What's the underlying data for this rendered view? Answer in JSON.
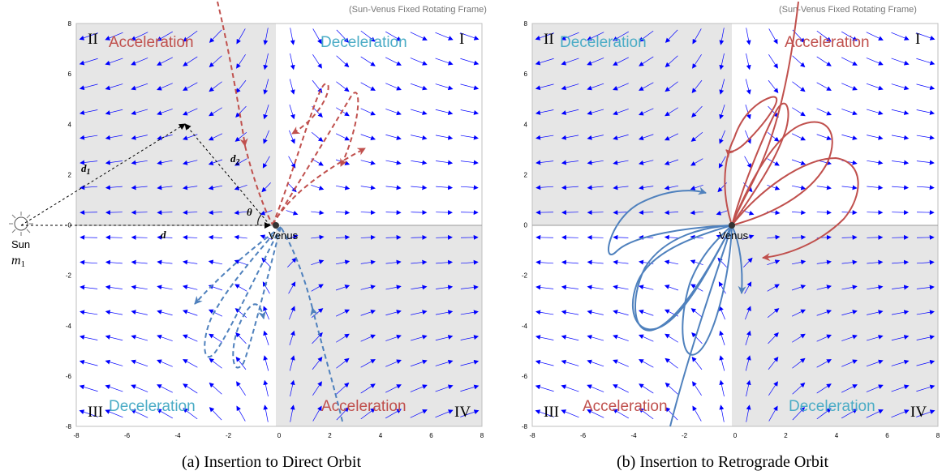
{
  "panels": [
    {
      "frame_title": "(Sun-Venus Fixed Rotating Frame)",
      "quadrants": {
        "I": "I",
        "II": "II",
        "III": "III",
        "IV": "IV"
      },
      "labels": {
        "q2": "Acceleration",
        "q1": "Deceleration",
        "q3": "Deceleration",
        "q4": "Acceleration"
      },
      "venus": "Venus",
      "caption": "(a) Insertion to Direct Orbit"
    },
    {
      "frame_title": "(Sun-Venus Fixed Rotating Frame)",
      "quadrants": {
        "I": "I",
        "II": "II",
        "III": "III",
        "IV": "IV"
      },
      "labels": {
        "q2": "Deceleration",
        "q1": "Acceleration",
        "q3": "Acceleration",
        "q4": "Deceleration"
      },
      "venus": "Venus",
      "caption": "(b) Insertion to Retrograde Orbit"
    }
  ],
  "sun": {
    "label": "Sun",
    "mass": "m",
    "mass_sub": "1"
  },
  "geometry_labels": {
    "d": "d",
    "d1": "d",
    "d1_sub": "1",
    "d2": "d",
    "d2_sub": "2",
    "theta": "θ"
  },
  "axis": {
    "min": -8,
    "max": 8,
    "ticks": [
      "-8",
      "-6",
      "-4",
      "-2",
      "0",
      "2",
      "4",
      "6",
      "8"
    ]
  },
  "colors": {
    "accel_red": "#c0504d",
    "decel_blue": "#4bacc6",
    "traj_blue": "#4f81bd",
    "field": "#0000ff",
    "shade": "#e6e6e6"
  }
}
